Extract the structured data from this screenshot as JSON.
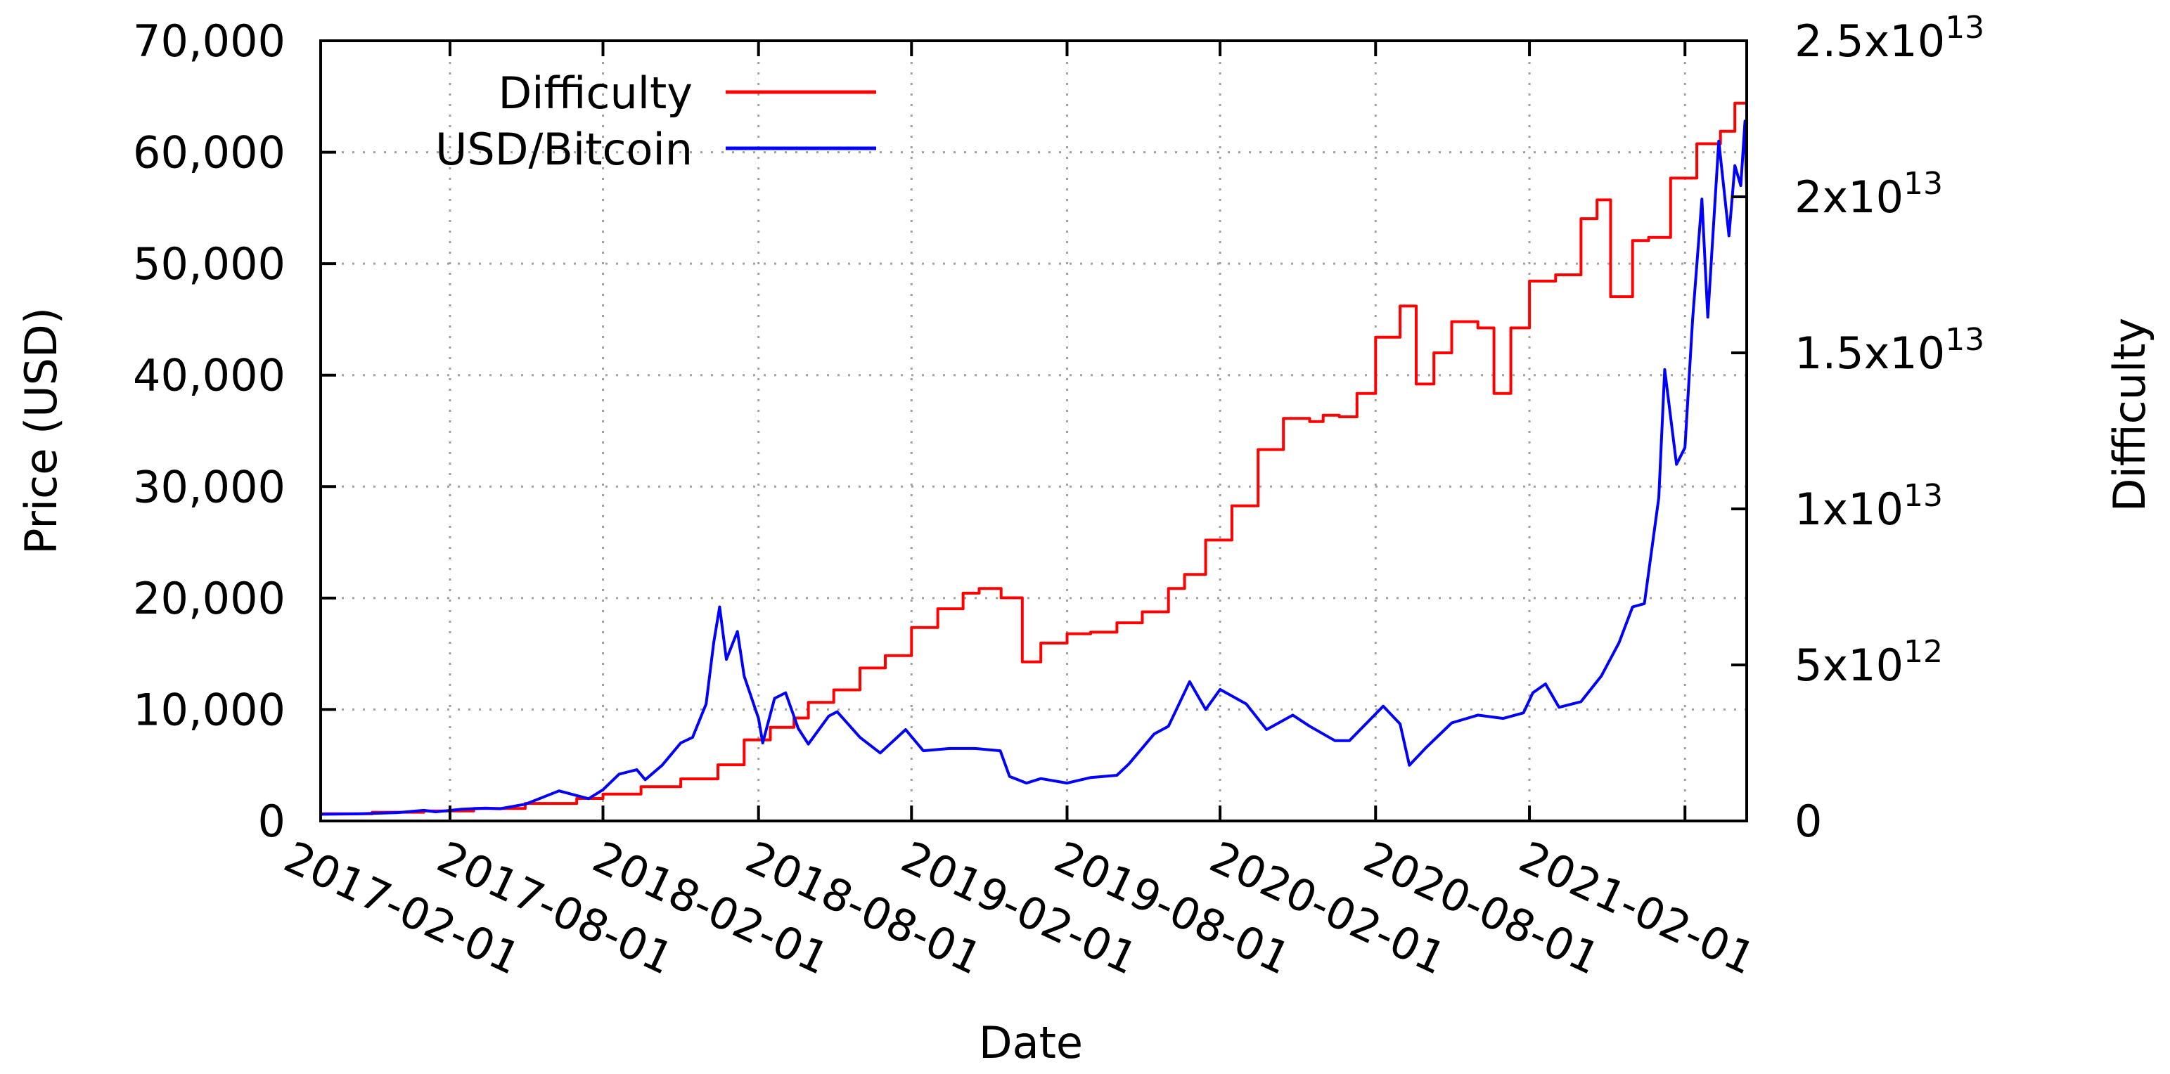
{
  "chart_data": {
    "type": "line",
    "title": "",
    "xlabel": "Date",
    "ylabel": "Price (USD)",
    "y2label": "Difficulty",
    "grid": true,
    "legend_position": "top-left",
    "x_range": [
      "2016-09-01",
      "2021-04-15"
    ],
    "x_ticks": [
      "2017-02-01",
      "2017-08-01",
      "2018-02-01",
      "2018-08-01",
      "2019-02-01",
      "2019-08-01",
      "2020-02-01",
      "2020-08-01",
      "2021-02-01"
    ],
    "ylim": [
      0,
      70000
    ],
    "y_ticks": [
      0,
      10000,
      20000,
      30000,
      40000,
      50000,
      60000,
      70000
    ],
    "y_tick_labels": [
      "0",
      "10,000",
      "20,000",
      "30,000",
      "40,000",
      "50,000",
      "60,000",
      "70,000"
    ],
    "y2lim": [
      0,
      25000000000000
    ],
    "y2_ticks": [
      0,
      5000000000000,
      10000000000000,
      15000000000000,
      20000000000000,
      25000000000000
    ],
    "y2_tick_labels": [
      {
        "base": "0",
        "exp": ""
      },
      {
        "base": "5x10",
        "exp": "12"
      },
      {
        "base": "1x10",
        "exp": "13"
      },
      {
        "base": "1.5x10",
        "exp": "13"
      },
      {
        "base": "2x10",
        "exp": "13"
      },
      {
        "base": "2.5x10",
        "exp": "13"
      }
    ],
    "series": [
      {
        "name": "Difficulty",
        "axis": "y2",
        "color": "#ff0000",
        "step": true,
        "points": [
          [
            "2016-09-01",
            230000000000.0
          ],
          [
            "2016-11-01",
            280000000000.0
          ],
          [
            "2017-01-01",
            320000000000.0
          ],
          [
            "2017-03-01",
            400000000000.0
          ],
          [
            "2017-05-01",
            560000000000.0
          ],
          [
            "2017-07-01",
            720000000000.0
          ],
          [
            "2017-08-01",
            860000000000.0
          ],
          [
            "2017-09-15",
            1100000000000.0
          ],
          [
            "2017-11-01",
            1350000000000.0
          ],
          [
            "2017-12-15",
            1800000000000.0
          ],
          [
            "2018-01-15",
            2600000000000.0
          ],
          [
            "2018-02-15",
            3000000000000.0
          ],
          [
            "2018-03-15",
            3300000000000.0
          ],
          [
            "2018-04-01",
            3800000000000.0
          ],
          [
            "2018-05-01",
            4200000000000.0
          ],
          [
            "2018-06-01",
            4900000000000.0
          ],
          [
            "2018-07-01",
            5300000000000.0
          ],
          [
            "2018-08-01",
            6200000000000.0
          ],
          [
            "2018-09-01",
            6800000000000.0
          ],
          [
            "2018-10-01",
            7300000000000.0
          ],
          [
            "2018-10-20",
            7450000000000.0
          ],
          [
            "2018-11-15",
            7150000000000.0
          ],
          [
            "2018-12-10",
            5100000000000.0
          ],
          [
            "2019-01-01",
            5700000000000.0
          ],
          [
            "2019-02-01",
            6000000000000.0
          ],
          [
            "2019-03-01",
            6050000000000.0
          ],
          [
            "2019-04-01",
            6350000000000.0
          ],
          [
            "2019-05-01",
            6700000000000.0
          ],
          [
            "2019-06-01",
            7450000000000.0
          ],
          [
            "2019-06-20",
            7900000000000.0
          ],
          [
            "2019-07-15",
            9000000000000.0
          ],
          [
            "2019-08-15",
            10100000000000.0
          ],
          [
            "2019-09-15",
            11900000000000.0
          ],
          [
            "2019-10-15",
            12900000000000.0
          ],
          [
            "2019-11-15",
            12800000000000.0
          ],
          [
            "2019-12-01",
            13000000000000.0
          ],
          [
            "2019-12-20",
            12950000000000.0
          ],
          [
            "2020-01-10",
            13700000000000.0
          ],
          [
            "2020-02-01",
            15500000000000.0
          ],
          [
            "2020-03-01",
            16500000000000.0
          ],
          [
            "2020-03-20",
            14000000000000.0
          ],
          [
            "2020-04-10",
            15000000000000.0
          ],
          [
            "2020-05-01",
            16000000000000.0
          ],
          [
            "2020-06-01",
            15800000000000.0
          ],
          [
            "2020-06-20",
            13700000000000.0
          ],
          [
            "2020-07-10",
            15800000000000.0
          ],
          [
            "2020-08-01",
            17300000000000.0
          ],
          [
            "2020-09-01",
            17500000000000.0
          ],
          [
            "2020-10-01",
            19300000000000.0
          ],
          [
            "2020-10-20",
            19900000000000.0
          ],
          [
            "2020-11-05",
            16800000000000.0
          ],
          [
            "2020-12-01",
            18600000000000.0
          ],
          [
            "2020-12-20",
            18700000000000.0
          ],
          [
            "2021-01-15",
            20600000000000.0
          ],
          [
            "2021-02-15",
            21700000000000.0
          ],
          [
            "2021-03-15",
            22100000000000.0
          ],
          [
            "2021-04-01",
            23000000000000.0
          ],
          [
            "2021-04-15",
            23600000000000.0
          ]
        ]
      },
      {
        "name": "USD/Bitcoin",
        "axis": "y",
        "color": "#0000ff",
        "step": false,
        "points": [
          [
            "2016-09-01",
            600
          ],
          [
            "2016-10-15",
            640
          ],
          [
            "2016-12-01",
            750
          ],
          [
            "2017-01-01",
            950
          ],
          [
            "2017-01-15",
            820
          ],
          [
            "2017-02-15",
            1050
          ],
          [
            "2017-03-15",
            1150
          ],
          [
            "2017-04-01",
            1100
          ],
          [
            "2017-05-01",
            1500
          ],
          [
            "2017-06-10",
            2700
          ],
          [
            "2017-07-15",
            2000
          ],
          [
            "2017-08-01",
            2800
          ],
          [
            "2017-08-20",
            4200
          ],
          [
            "2017-09-10",
            4600
          ],
          [
            "2017-09-20",
            3700
          ],
          [
            "2017-10-10",
            5000
          ],
          [
            "2017-11-01",
            7000
          ],
          [
            "2017-11-15",
            7500
          ],
          [
            "2017-12-01",
            10500
          ],
          [
            "2017-12-10",
            16000
          ],
          [
            "2017-12-17",
            19200
          ],
          [
            "2017-12-25",
            14500
          ],
          [
            "2018-01-07",
            17000
          ],
          [
            "2018-01-15",
            13000
          ],
          [
            "2018-02-01",
            9200
          ],
          [
            "2018-02-06",
            7000
          ],
          [
            "2018-02-20",
            11000
          ],
          [
            "2018-03-05",
            11500
          ],
          [
            "2018-03-20",
            8300
          ],
          [
            "2018-04-01",
            6900
          ],
          [
            "2018-04-25",
            9400
          ],
          [
            "2018-05-05",
            9800
          ],
          [
            "2018-06-01",
            7500
          ],
          [
            "2018-06-25",
            6100
          ],
          [
            "2018-07-25",
            8200
          ],
          [
            "2018-08-15",
            6300
          ],
          [
            "2018-09-15",
            6500
          ],
          [
            "2018-10-15",
            6500
          ],
          [
            "2018-11-14",
            6300
          ],
          [
            "2018-11-25",
            4000
          ],
          [
            "2018-12-15",
            3400
          ],
          [
            "2019-01-01",
            3800
          ],
          [
            "2019-02-01",
            3400
          ],
          [
            "2019-03-01",
            3900
          ],
          [
            "2019-04-01",
            4100
          ],
          [
            "2019-04-15",
            5100
          ],
          [
            "2019-05-15",
            7800
          ],
          [
            "2019-06-01",
            8500
          ],
          [
            "2019-06-26",
            12500
          ],
          [
            "2019-07-15",
            10000
          ],
          [
            "2019-08-01",
            11800
          ],
          [
            "2019-09-01",
            10500
          ],
          [
            "2019-09-25",
            8200
          ],
          [
            "2019-10-26",
            9500
          ],
          [
            "2019-11-15",
            8500
          ],
          [
            "2019-12-15",
            7200
          ],
          [
            "2020-01-01",
            7200
          ],
          [
            "2020-02-10",
            10300
          ],
          [
            "2020-03-01",
            8700
          ],
          [
            "2020-03-12",
            5000
          ],
          [
            "2020-04-01",
            6600
          ],
          [
            "2020-05-01",
            8800
          ],
          [
            "2020-06-01",
            9500
          ],
          [
            "2020-07-01",
            9200
          ],
          [
            "2020-07-25",
            9700
          ],
          [
            "2020-08-05",
            11500
          ],
          [
            "2020-08-20",
            12300
          ],
          [
            "2020-09-05",
            10200
          ],
          [
            "2020-10-01",
            10700
          ],
          [
            "2020-10-25",
            13000
          ],
          [
            "2020-11-15",
            16000
          ],
          [
            "2020-12-01",
            19200
          ],
          [
            "2020-12-15",
            19500
          ],
          [
            "2021-01-01",
            29000
          ],
          [
            "2021-01-08",
            40500
          ],
          [
            "2021-01-22",
            32000
          ],
          [
            "2021-02-01",
            33500
          ],
          [
            "2021-02-10",
            45000
          ],
          [
            "2021-02-21",
            55800
          ],
          [
            "2021-02-28",
            45200
          ],
          [
            "2021-03-13",
            61000
          ],
          [
            "2021-03-25",
            52500
          ],
          [
            "2021-04-01",
            58800
          ],
          [
            "2021-04-08",
            57000
          ],
          [
            "2021-04-13",
            62800
          ],
          [
            "2021-04-15",
            56500
          ]
        ]
      }
    ]
  }
}
